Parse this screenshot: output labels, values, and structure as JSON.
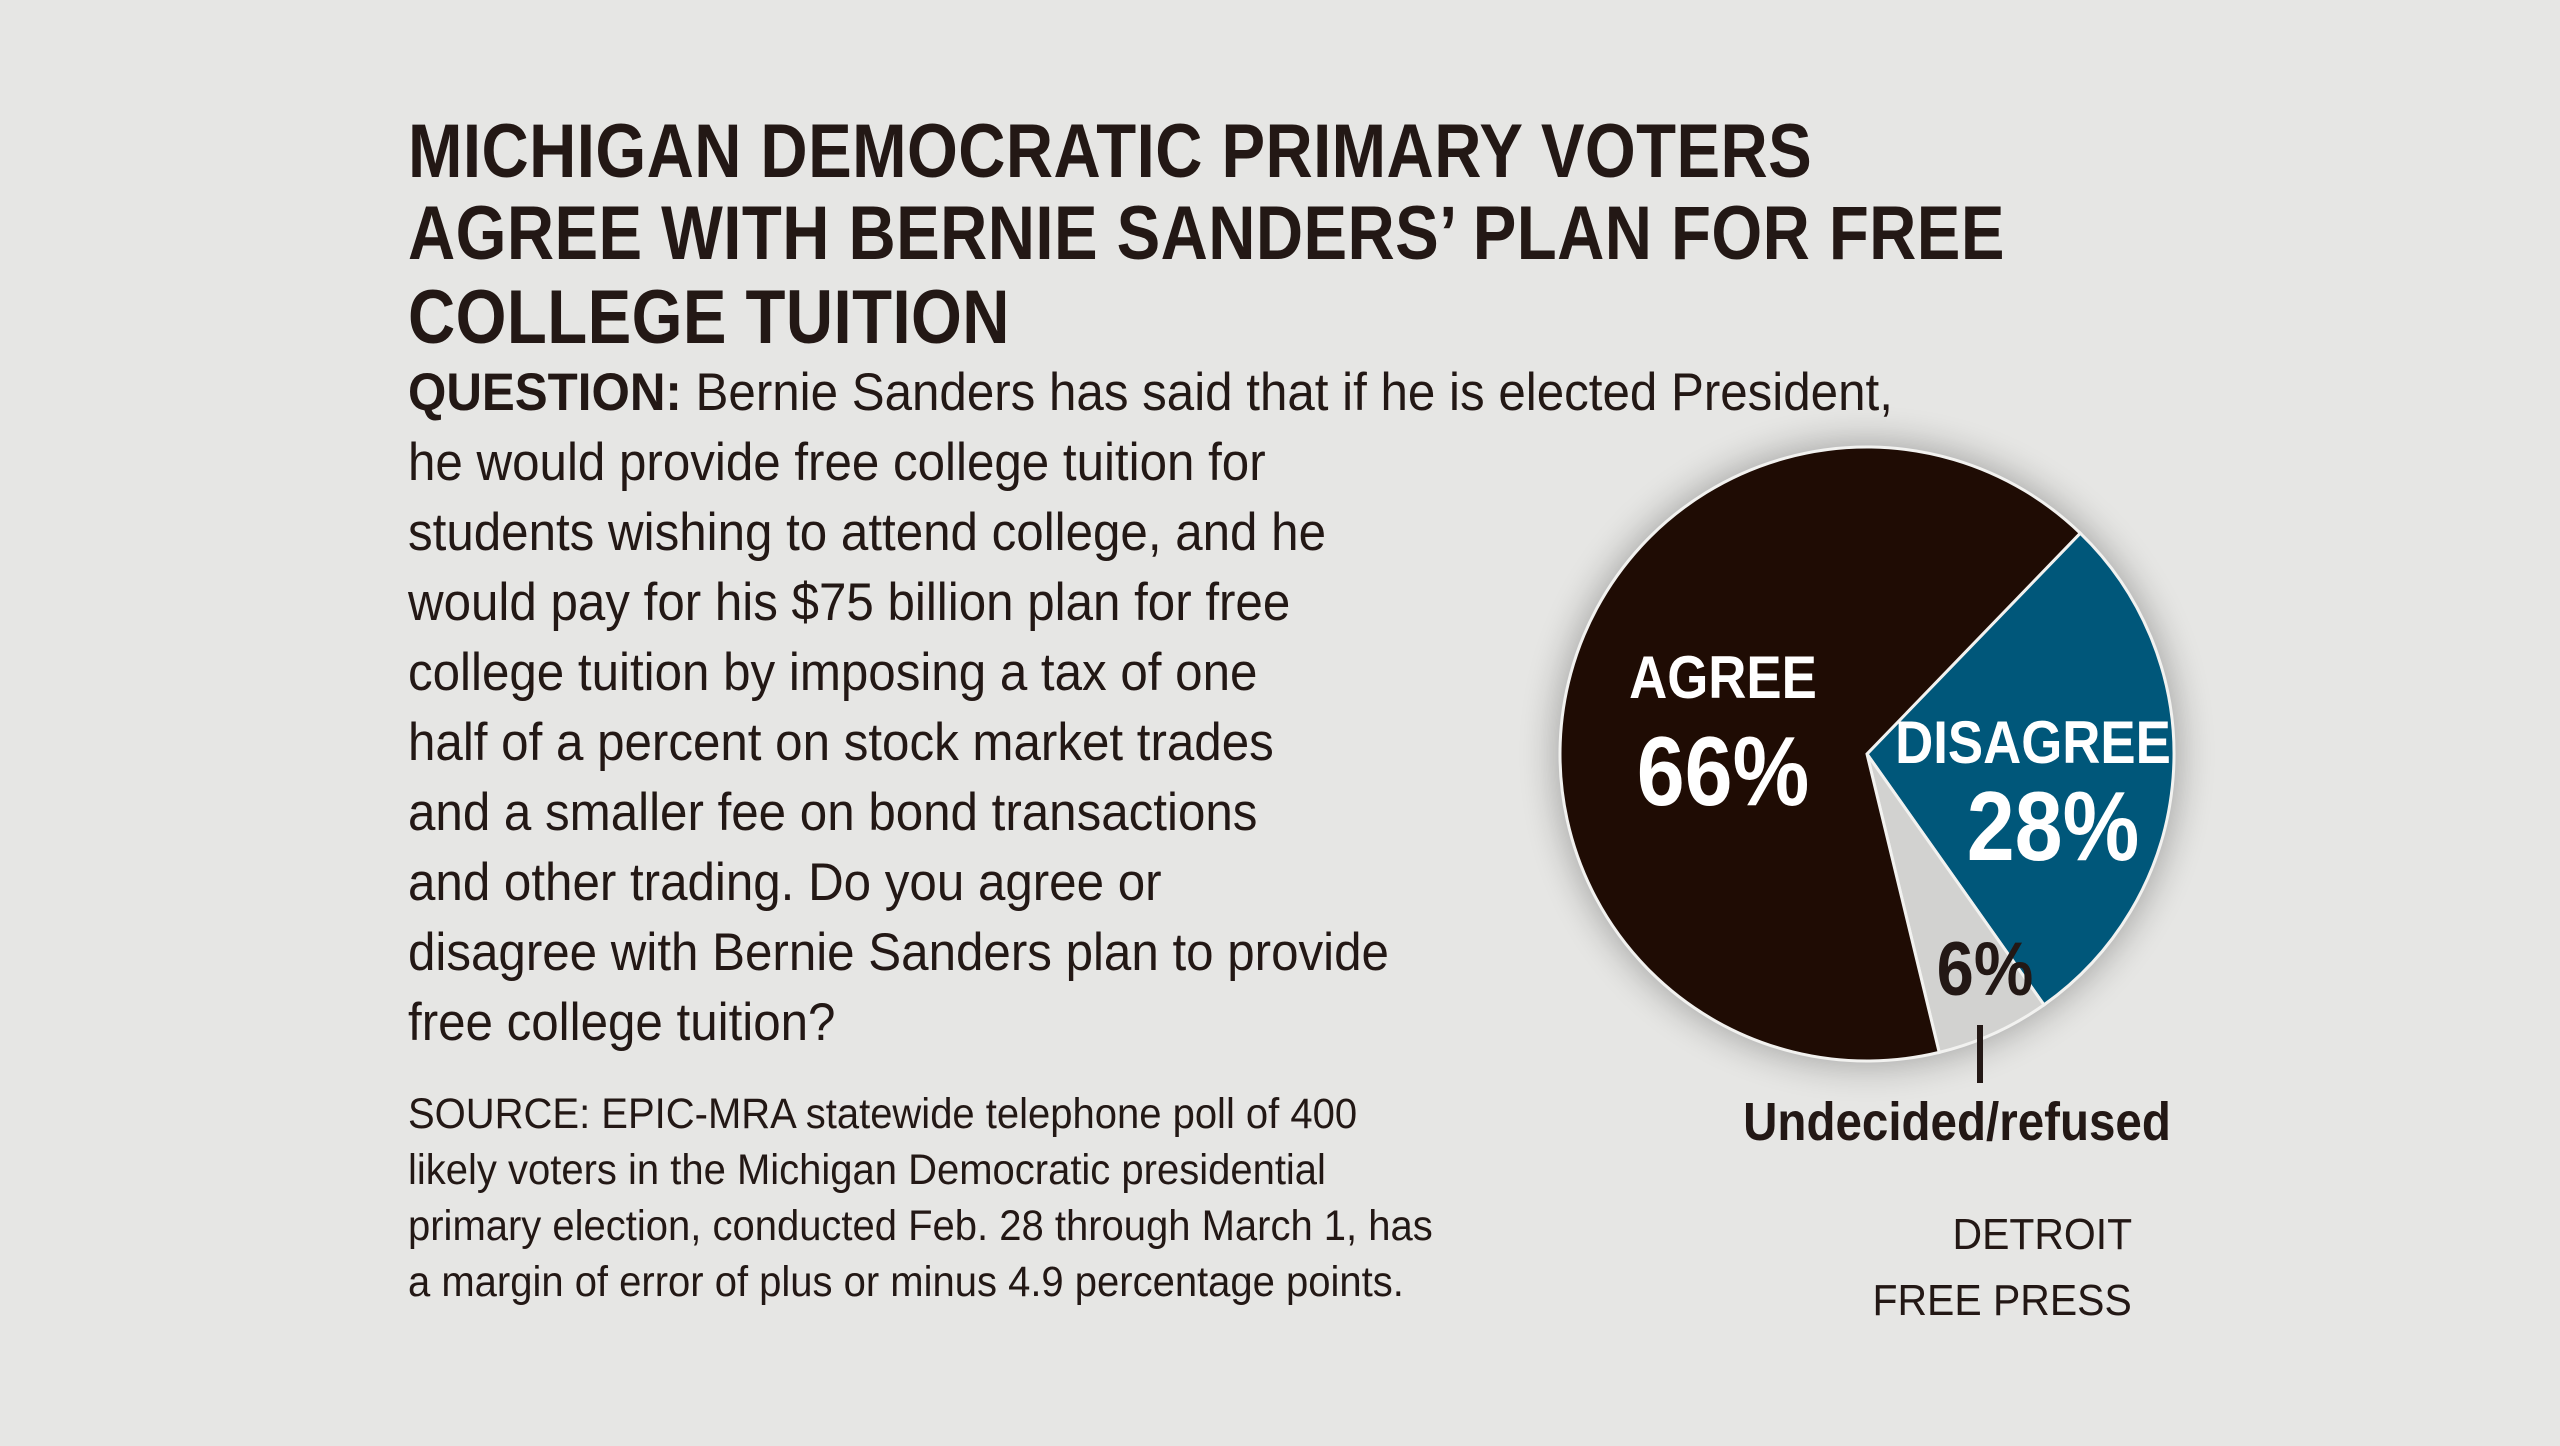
{
  "title_lines": [
    "MICHIGAN DEMOCRATIC PRIMARY VOTERS",
    "AGREE WITH BERNIE SANDERS’ PLAN FOR FREE",
    "COLLEGE TUITION"
  ],
  "question": {
    "label": "QUESTION:",
    "lines": [
      " Bernie Sanders has said that if he is elected President,",
      "he would provide free college tuition for",
      "students wishing to attend college, and he",
      "would pay for his $75 billion plan for free",
      "college tuition by imposing a tax of one",
      "half of a percent on stock market trades",
      "and a smaller fee on bond transactions",
      "and other trading. Do you agree or",
      "disagree with Bernie Sanders plan to provide",
      "free college tuition?"
    ]
  },
  "source_lines": [
    "SOURCE: EPIC-MRA statewide telephone poll of 400",
    "likely voters in the Michigan Democratic presidential",
    "primary election, conducted Feb. 28 through March 1, has",
    "a margin of error of plus or minus 4.9 percentage points."
  ],
  "credit_lines": [
    "DETROIT",
    "FREE PRESS"
  ],
  "chart_data": {
    "type": "pie",
    "slices": [
      {
        "label": "DISAGREE",
        "value": 28,
        "value_label": "28%",
        "color": "#00577a"
      },
      {
        "label": "Undecided/refused",
        "value": 6,
        "value_label": "6%",
        "color": "#d2d2d0"
      },
      {
        "label": "AGREE",
        "value": 66,
        "value_label": "66%",
        "color": "#1f0c04"
      }
    ]
  },
  "colors": {
    "background": "#e6e6e4",
    "text": "#231815"
  }
}
